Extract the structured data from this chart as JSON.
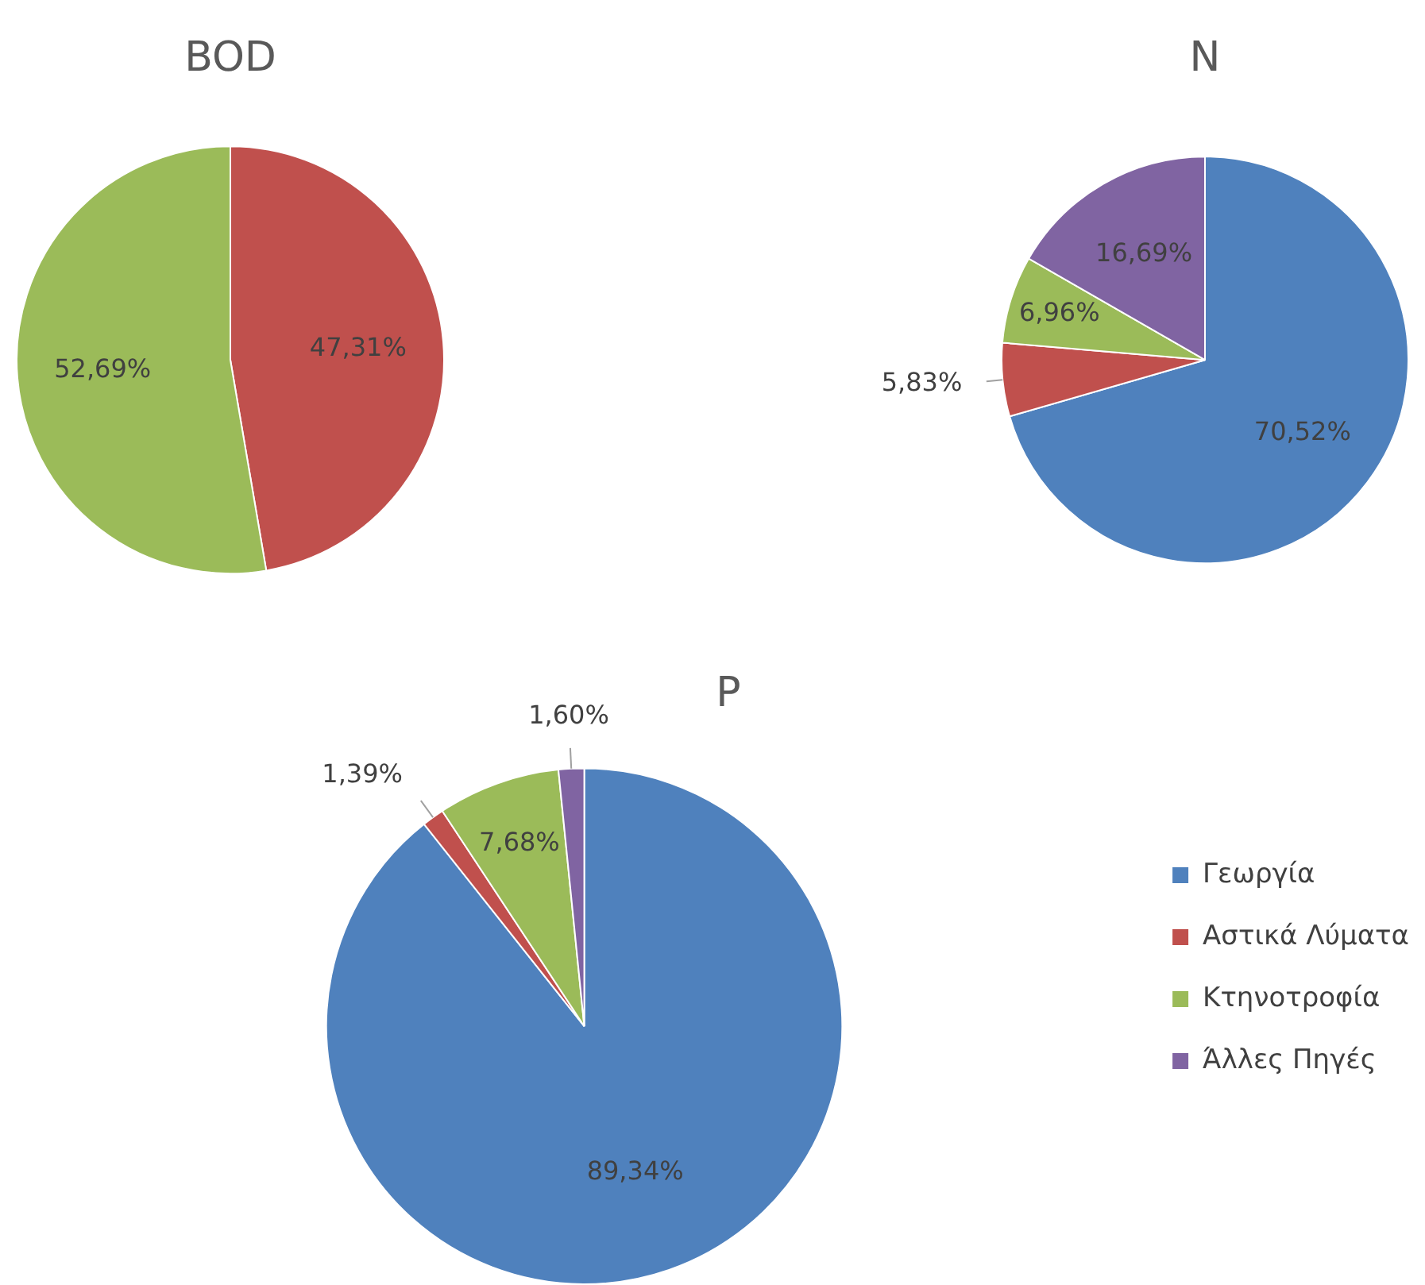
{
  "chart_data": [
    {
      "type": "pie",
      "title": "BOD",
      "categories": [
        null,
        null
      ],
      "values": [
        47.31,
        52.69
      ],
      "colors": [
        "#c0504d",
        "#9bbb59"
      ],
      "value_labels": [
        "47,31%",
        "52,69%"
      ],
      "legend": false
    },
    {
      "type": "pie",
      "title": "N",
      "categories": [
        null,
        null,
        null,
        null
      ],
      "values": [
        70.52,
        5.83,
        6.96,
        16.69
      ],
      "colors": [
        "#4f81bd",
        "#c0504d",
        "#9bbb59",
        "#8064a2"
      ],
      "value_labels": [
        "70,52%",
        "5,83%",
        "6,96%",
        "16,69%"
      ],
      "legend": false
    },
    {
      "type": "pie",
      "title": "P",
      "categories": [
        "Γεωργία",
        "Αστικά Λύματα",
        "Κτηνοτροφία",
        "Άλλες Πηγές"
      ],
      "values": [
        89.34,
        1.39,
        7.68,
        1.6
      ],
      "colors": [
        "#4f81bd",
        "#c0504d",
        "#9bbb59",
        "#8064a2"
      ],
      "value_labels": [
        "89,34%",
        "1,39%",
        "7,68%",
        "1,60%"
      ],
      "legend": "right"
    }
  ]
}
